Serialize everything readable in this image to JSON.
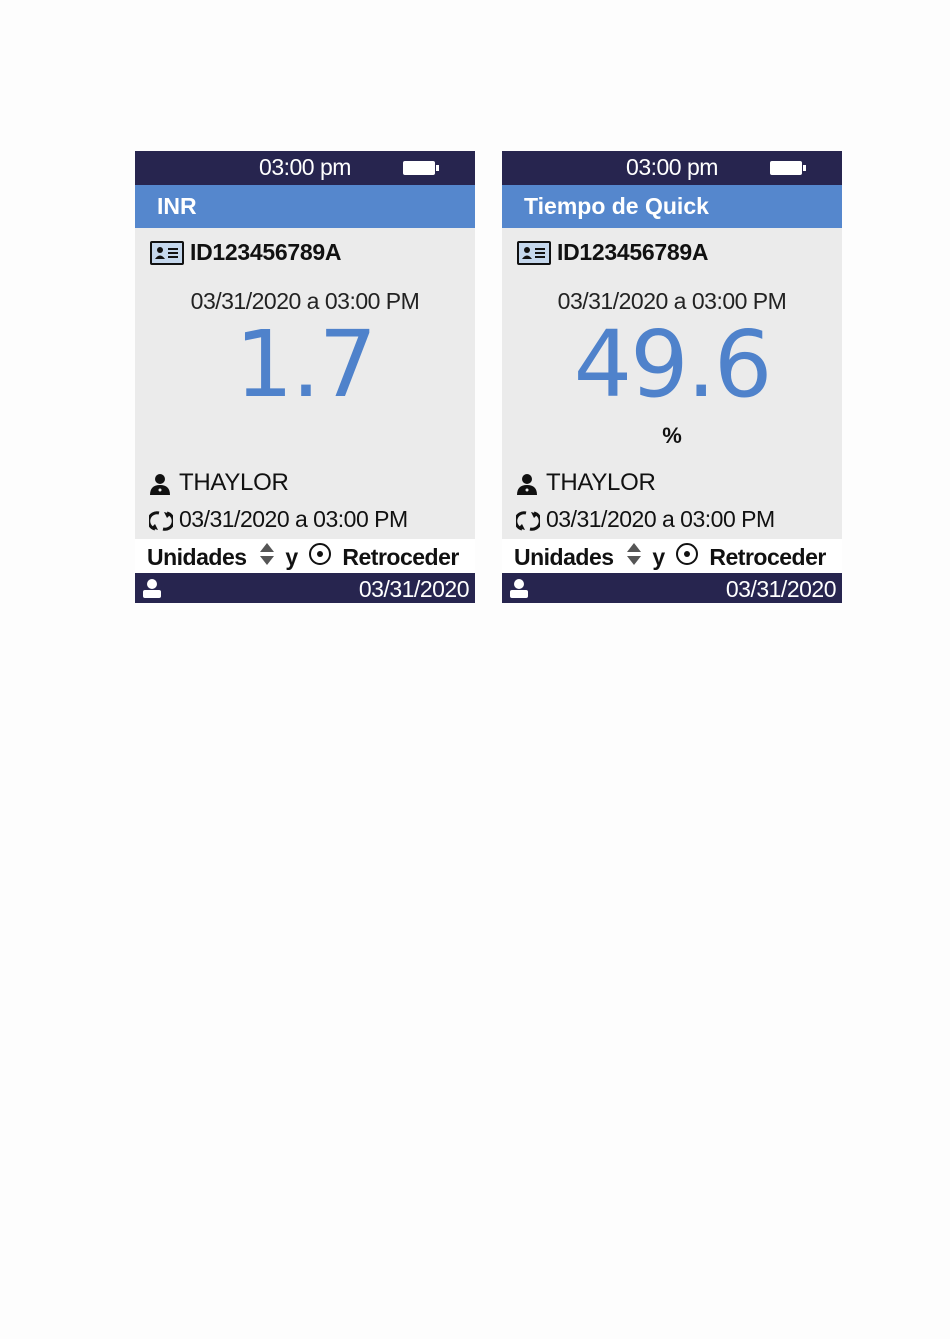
{
  "screens": [
    {
      "status_time": "03:00 pm",
      "title": "INR",
      "patient_id": "ID123456789A",
      "test_datetime": "03/31/2020 a 03:00 PM",
      "result_value": "1.7",
      "result_unit": "",
      "operator": "THAYLOR",
      "sync_datetime": "03/31/2020 a 03:00 PM",
      "hint": {
        "units_label": "Unidades",
        "and_label": "y",
        "back_label": "Retroceder"
      },
      "footer_date": "03/31/2020"
    },
    {
      "status_time": "03:00 pm",
      "title": "Tiempo de Quick",
      "patient_id": "ID123456789A",
      "test_datetime": "03/31/2020 a 03:00 PM",
      "result_value": "49.6",
      "result_unit": "%",
      "operator": "THAYLOR",
      "sync_datetime": "03/31/2020 a 03:00 PM",
      "hint": {
        "units_label": "Unidades",
        "and_label": "y",
        "back_label": "Retroceder"
      },
      "footer_date": "03/31/2020"
    }
  ],
  "colors": {
    "status_bar": "#27254f",
    "title_bar": "#5587cd",
    "result_value": "#4f82cb",
    "screen_background": "#ebebeb"
  },
  "icons": [
    "battery-icon",
    "id-card-icon",
    "person-icon",
    "sync-icon",
    "up-down-arrows-icon",
    "circle-dot-icon",
    "user-icon"
  ]
}
